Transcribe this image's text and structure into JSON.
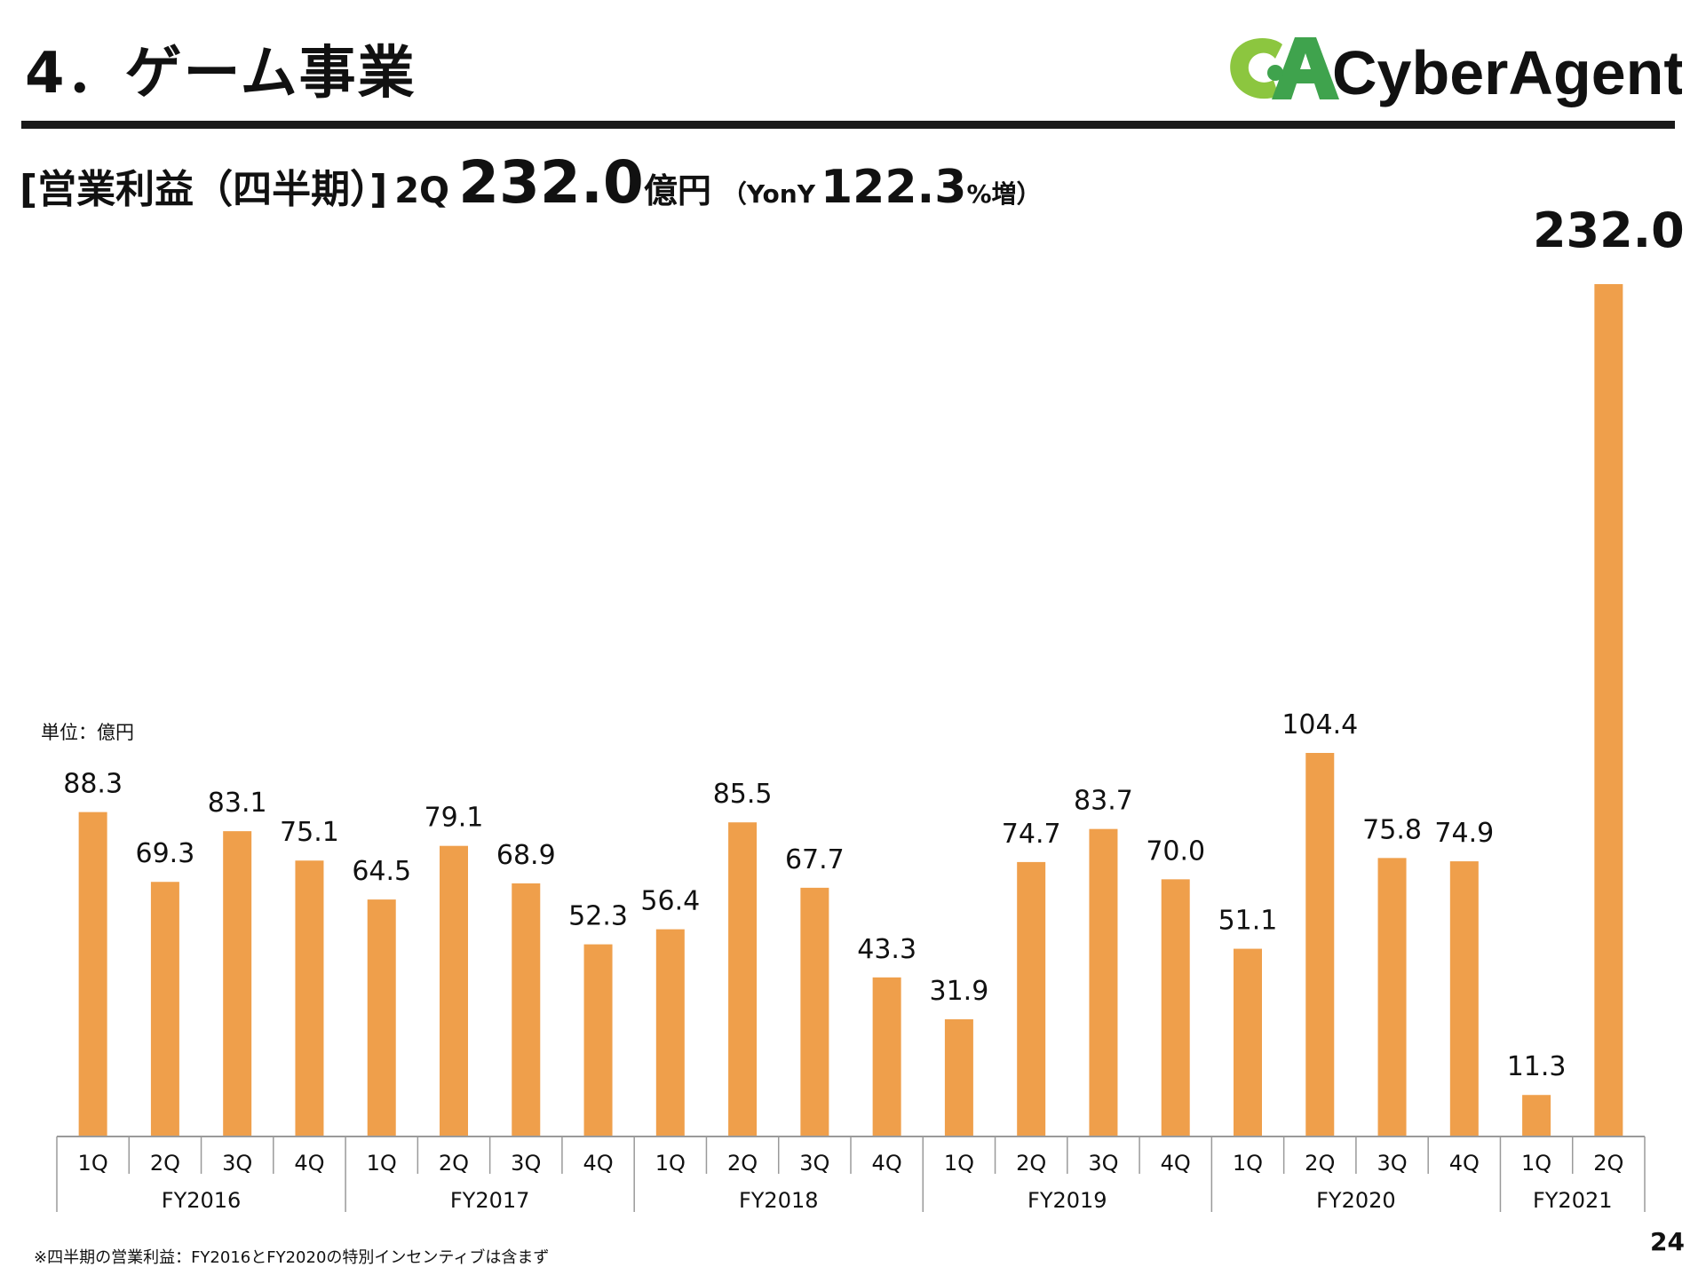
{
  "slide": {
    "title": "4．ゲーム事業",
    "logo_text": "CyberAgent",
    "logo_mark_text": "CA",
    "logo_registered": "®",
    "page_number": "24"
  },
  "headline": {
    "metric": "[営業利益（四半期）]",
    "quarter": "2Q",
    "value": "232.0",
    "unit": "億円",
    "yoy_open": "（YonY",
    "yoy_value": "122.3",
    "yoy_suffix": "%増）"
  },
  "unit_label": "単位：億円",
  "footnote": "※四半期の営業利益：FY2016とFY2020の特別インセンティブは含まず",
  "colors": {
    "bar": "#EF9F4B",
    "logo_green": "#3FA34D",
    "logo_lime": "#8CC63F",
    "text": "#111111",
    "axis": "#9a9a9a"
  },
  "chart_data": {
    "type": "bar",
    "title": "",
    "xlabel": "",
    "ylabel": "",
    "ylim": [
      0,
      232.0
    ],
    "categories": [
      "1Q",
      "2Q",
      "3Q",
      "4Q",
      "1Q",
      "2Q",
      "3Q",
      "4Q",
      "1Q",
      "2Q",
      "3Q",
      "4Q",
      "1Q",
      "2Q",
      "3Q",
      "4Q",
      "1Q",
      "2Q",
      "3Q",
      "4Q",
      "1Q",
      "2Q"
    ],
    "groups": [
      {
        "label": "FY2016",
        "count": 4
      },
      {
        "label": "FY2017",
        "count": 4
      },
      {
        "label": "FY2018",
        "count": 4
      },
      {
        "label": "FY2019",
        "count": 4
      },
      {
        "label": "FY2020",
        "count": 4
      },
      {
        "label": "FY2021",
        "count": 2
      }
    ],
    "values": [
      88.3,
      69.3,
      83.1,
      75.1,
      64.5,
      79.1,
      68.9,
      52.3,
      56.4,
      85.5,
      67.7,
      43.3,
      31.9,
      74.7,
      83.7,
      70.0,
      51.1,
      104.4,
      75.8,
      74.9,
      11.3,
      232.0
    ],
    "value_labels": [
      "88.3",
      "69.3",
      "83.1",
      "75.1",
      "64.5",
      "79.1",
      "68.9",
      "52.3",
      "56.4",
      "85.5",
      "67.7",
      "43.3",
      "31.9",
      "74.7",
      "83.7",
      "70.0",
      "51.1",
      "104.4",
      "75.8",
      "74.9",
      "11.3",
      "232.0"
    ],
    "data_labels": true,
    "grid": false,
    "legend": "none"
  }
}
